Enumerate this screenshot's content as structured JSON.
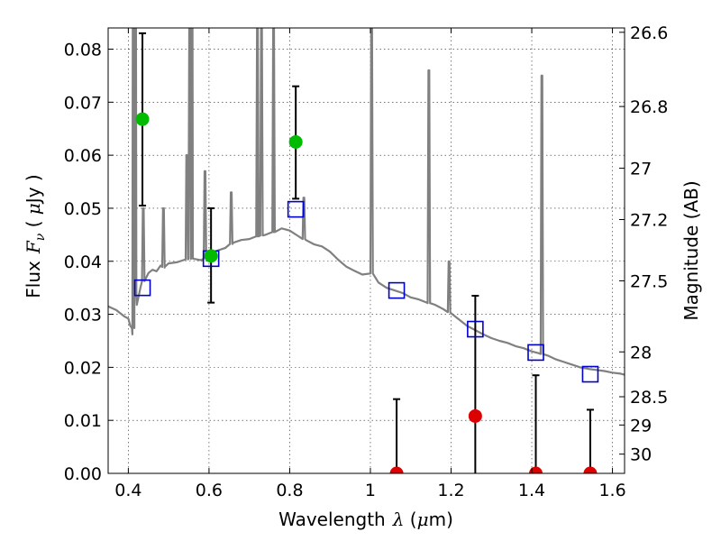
{
  "chart_data": {
    "type": "scatter",
    "xlabel": {
      "prefix": "Wavelength",
      "symbol": "λ",
      "unit_open": " (",
      "unit_mu": "μ",
      "unit_rest": "m)"
    },
    "ylabel": {
      "prefix": "Flux",
      "symbol": "F",
      "sub": "ν",
      "unit_open": " ( ",
      "unit_mu": "μ",
      "unit_rest": "Jy )"
    },
    "y2label": "Magnitude (AB)",
    "xlim": [
      0.35,
      1.63
    ],
    "ylim": [
      0.0,
      0.084
    ],
    "x_ticks": [
      {
        "value": 0.4,
        "label": "0.4"
      },
      {
        "value": 0.6,
        "label": "0.6"
      },
      {
        "value": 0.8,
        "label": "0.8"
      },
      {
        "value": 1.0,
        "label": "1"
      },
      {
        "value": 1.2,
        "label": "1.2"
      },
      {
        "value": 1.4,
        "label": "1.4"
      },
      {
        "value": 1.6,
        "label": "1.6"
      }
    ],
    "y_ticks": [
      {
        "value": 0.0,
        "label": "0.00"
      },
      {
        "value": 0.01,
        "label": "0.01"
      },
      {
        "value": 0.02,
        "label": "0.02"
      },
      {
        "value": 0.03,
        "label": "0.03"
      },
      {
        "value": 0.04,
        "label": "0.04"
      },
      {
        "value": 0.05,
        "label": "0.05"
      },
      {
        "value": 0.06,
        "label": "0.06"
      },
      {
        "value": 0.07,
        "label": "0.07"
      },
      {
        "value": 0.08,
        "label": "0.08"
      }
    ],
    "mag_ticks": [
      {
        "value": 26.6,
        "label": "26.6"
      },
      {
        "value": 26.8,
        "label": "26.8"
      },
      {
        "value": 27.0,
        "label": "27"
      },
      {
        "value": 27.2,
        "label": "27.2"
      },
      {
        "value": 27.5,
        "label": "27.5"
      },
      {
        "value": 28.0,
        "label": "28"
      },
      {
        "value": 28.5,
        "label": "28.5"
      },
      {
        "value": 29.0,
        "label": "29"
      },
      {
        "value": 30.0,
        "label": "30"
      }
    ],
    "grid": true,
    "colors": {
      "spectrum": "#808080",
      "detection": "#00bb00",
      "nondetection": "#dd0000",
      "model": "#0000cc",
      "errorbar": "#000000"
    },
    "spectrum_continuum": [
      [
        0.35,
        0.0315
      ],
      [
        0.37,
        0.0308
      ],
      [
        0.39,
        0.0296
      ],
      [
        0.4,
        0.0292
      ],
      [
        0.405,
        0.0278
      ],
      [
        0.41,
        0.0262
      ],
      [
        0.415,
        0.0292
      ],
      [
        0.42,
        0.0335
      ],
      [
        0.43,
        0.035
      ],
      [
        0.44,
        0.0368
      ],
      [
        0.45,
        0.0378
      ],
      [
        0.46,
        0.0384
      ],
      [
        0.47,
        0.0381
      ],
      [
        0.48,
        0.0392
      ],
      [
        0.49,
        0.0388
      ],
      [
        0.5,
        0.0396
      ],
      [
        0.52,
        0.0398
      ],
      [
        0.54,
        0.0403
      ],
      [
        0.56,
        0.0405
      ],
      [
        0.58,
        0.0402
      ],
      [
        0.6,
        0.0408
      ],
      [
        0.62,
        0.042
      ],
      [
        0.64,
        0.0425
      ],
      [
        0.66,
        0.0435
      ],
      [
        0.68,
        0.044
      ],
      [
        0.7,
        0.0442
      ],
      [
        0.72,
        0.0447
      ],
      [
        0.74,
        0.045
      ],
      [
        0.76,
        0.0455
      ],
      [
        0.78,
        0.0462
      ],
      [
        0.8,
        0.0458
      ],
      [
        0.82,
        0.0448
      ],
      [
        0.84,
        0.044
      ],
      [
        0.86,
        0.0432
      ],
      [
        0.88,
        0.0428
      ],
      [
        0.9,
        0.0418
      ],
      [
        0.92,
        0.0403
      ],
      [
        0.94,
        0.039
      ],
      [
        0.96,
        0.0382
      ],
      [
        0.98,
        0.0375
      ],
      [
        1.0,
        0.038
      ],
      [
        1.02,
        0.036
      ],
      [
        1.04,
        0.035
      ],
      [
        1.06,
        0.0345
      ],
      [
        1.08,
        0.034
      ],
      [
        1.1,
        0.0332
      ],
      [
        1.12,
        0.0328
      ],
      [
        1.14,
        0.0322
      ],
      [
        1.16,
        0.0318
      ],
      [
        1.18,
        0.031
      ],
      [
        1.2,
        0.0302
      ],
      [
        1.22,
        0.029
      ],
      [
        1.24,
        0.0278
      ],
      [
        1.26,
        0.027
      ],
      [
        1.28,
        0.0262
      ],
      [
        1.3,
        0.0255
      ],
      [
        1.32,
        0.025
      ],
      [
        1.34,
        0.0246
      ],
      [
        1.36,
        0.024
      ],
      [
        1.38,
        0.0236
      ],
      [
        1.4,
        0.023
      ],
      [
        1.42,
        0.0226
      ],
      [
        1.44,
        0.0222
      ],
      [
        1.46,
        0.0215
      ],
      [
        1.48,
        0.021
      ],
      [
        1.5,
        0.0205
      ],
      [
        1.52,
        0.02
      ],
      [
        1.54,
        0.0197
      ],
      [
        1.56,
        0.0195
      ],
      [
        1.58,
        0.0193
      ],
      [
        1.6,
        0.019
      ],
      [
        1.62,
        0.0188
      ],
      [
        1.63,
        0.0186
      ]
    ],
    "spectrum_lines": [
      {
        "x": 0.412,
        "peak": 0.084
      },
      {
        "x": 0.418,
        "peak": 0.084
      },
      {
        "x": 0.437,
        "peak": 0.05
      },
      {
        "x": 0.487,
        "peak": 0.05
      },
      {
        "x": 0.552,
        "peak": 0.084
      },
      {
        "x": 0.558,
        "peak": 0.084
      },
      {
        "x": 0.545,
        "peak": 0.06
      },
      {
        "x": 0.59,
        "peak": 0.057
      },
      {
        "x": 0.655,
        "peak": 0.053
      },
      {
        "x": 0.72,
        "peak": 0.084
      },
      {
        "x": 0.73,
        "peak": 0.084
      },
      {
        "x": 0.76,
        "peak": 0.084
      },
      {
        "x": 0.835,
        "peak": 0.052
      },
      {
        "x": 1.003,
        "peak": 0.084
      },
      {
        "x": 1.145,
        "peak": 0.076
      },
      {
        "x": 1.195,
        "peak": 0.04
      },
      {
        "x": 1.425,
        "peak": 0.075
      }
    ],
    "detections": [
      {
        "x": 0.435,
        "y": 0.0668,
        "err_low": 0.0505,
        "err_high": 0.083
      },
      {
        "x": 0.605,
        "y": 0.041,
        "err_low": 0.0322,
        "err_high": 0.05
      },
      {
        "x": 0.815,
        "y": 0.0625,
        "err_low": 0.0518,
        "err_high": 0.073
      }
    ],
    "nondetections": [
      {
        "x": 1.065,
        "y": 0.0,
        "err_low": 0.0,
        "err_high": 0.014
      },
      {
        "x": 1.26,
        "y": 0.0108,
        "err_low": 0.0,
        "err_high": 0.0335
      },
      {
        "x": 1.41,
        "y": 0.0,
        "err_low": 0.0,
        "err_high": 0.0185
      },
      {
        "x": 1.545,
        "y": 0.0,
        "err_low": 0.0,
        "err_high": 0.012
      }
    ],
    "model_points": [
      {
        "x": 0.435,
        "y": 0.035
      },
      {
        "x": 0.605,
        "y": 0.0405
      },
      {
        "x": 0.815,
        "y": 0.0498
      },
      {
        "x": 1.065,
        "y": 0.0345
      },
      {
        "x": 1.26,
        "y": 0.0272
      },
      {
        "x": 1.41,
        "y": 0.0228
      },
      {
        "x": 1.545,
        "y": 0.0187
      }
    ]
  }
}
